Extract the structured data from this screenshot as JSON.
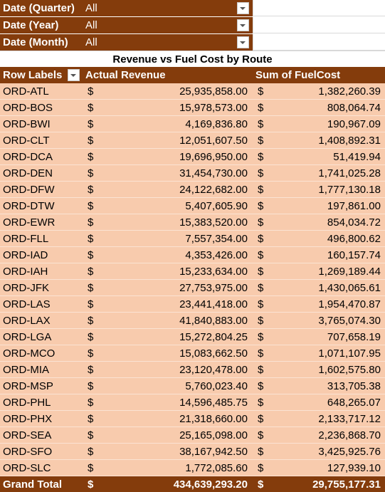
{
  "filters": [
    {
      "label": "Date (Quarter)",
      "value": "All"
    },
    {
      "label": "Date (Year)",
      "value": "All"
    },
    {
      "label": "Date (Month)",
      "value": "All"
    }
  ],
  "title": "Revenue vs Fuel Cost by Route",
  "header": {
    "row_labels": "Row Labels",
    "actual_revenue": "Actual Revenue",
    "sum_fuel_cost": "Sum of FuelCost"
  },
  "currency_symbol": "$",
  "rows": [
    {
      "label": "ORD-ATL",
      "revenue": "25,935,858.00",
      "fuel": "1,382,260.39"
    },
    {
      "label": "ORD-BOS",
      "revenue": "15,978,573.00",
      "fuel": "808,064.74"
    },
    {
      "label": "ORD-BWI",
      "revenue": "4,169,836.80",
      "fuel": "190,967.09"
    },
    {
      "label": "ORD-CLT",
      "revenue": "12,051,607.50",
      "fuel": "1,408,892.31"
    },
    {
      "label": "ORD-DCA",
      "revenue": "19,696,950.00",
      "fuel": "51,419.94"
    },
    {
      "label": "ORD-DEN",
      "revenue": "31,454,730.00",
      "fuel": "1,741,025.28"
    },
    {
      "label": "ORD-DFW",
      "revenue": "24,122,682.00",
      "fuel": "1,777,130.18"
    },
    {
      "label": "ORD-DTW",
      "revenue": "5,407,605.90",
      "fuel": "197,861.00"
    },
    {
      "label": "ORD-EWR",
      "revenue": "15,383,520.00",
      "fuel": "854,034.72"
    },
    {
      "label": "ORD-FLL",
      "revenue": "7,557,354.00",
      "fuel": "496,800.62"
    },
    {
      "label": "ORD-IAD",
      "revenue": "4,353,426.00",
      "fuel": "160,157.74"
    },
    {
      "label": "ORD-IAH",
      "revenue": "15,233,634.00",
      "fuel": "1,269,189.44"
    },
    {
      "label": "ORD-JFK",
      "revenue": "27,753,975.00",
      "fuel": "1,430,065.61"
    },
    {
      "label": "ORD-LAS",
      "revenue": "23,441,418.00",
      "fuel": "1,954,470.87"
    },
    {
      "label": "ORD-LAX",
      "revenue": "41,840,883.00",
      "fuel": "3,765,074.30"
    },
    {
      "label": "ORD-LGA",
      "revenue": "15,272,804.25",
      "fuel": "707,658.19"
    },
    {
      "label": "ORD-MCO",
      "revenue": "15,083,662.50",
      "fuel": "1,071,107.95"
    },
    {
      "label": "ORD-MIA",
      "revenue": "23,120,478.00",
      "fuel": "1,602,575.80"
    },
    {
      "label": "ORD-MSP",
      "revenue": "5,760,023.40",
      "fuel": "313,705.38"
    },
    {
      "label": "ORD-PHL",
      "revenue": "14,596,485.75",
      "fuel": "648,265.07"
    },
    {
      "label": "ORD-PHX",
      "revenue": "21,318,660.00",
      "fuel": "2,133,717.12"
    },
    {
      "label": "ORD-SEA",
      "revenue": "25,165,098.00",
      "fuel": "2,236,868.70"
    },
    {
      "label": "ORD-SFO",
      "revenue": "38,167,942.50",
      "fuel": "3,425,925.76"
    },
    {
      "label": "ORD-SLC",
      "revenue": "1,772,085.60",
      "fuel": "127,939.10"
    }
  ],
  "grand_total": {
    "label": "Grand Total",
    "revenue": "434,639,293.20",
    "fuel": "29,755,177.31"
  },
  "colors": {
    "header": "#843c0c",
    "row": "#f8cbad"
  },
  "icons": {
    "filter_dropdown": "chevron-down-icon"
  }
}
